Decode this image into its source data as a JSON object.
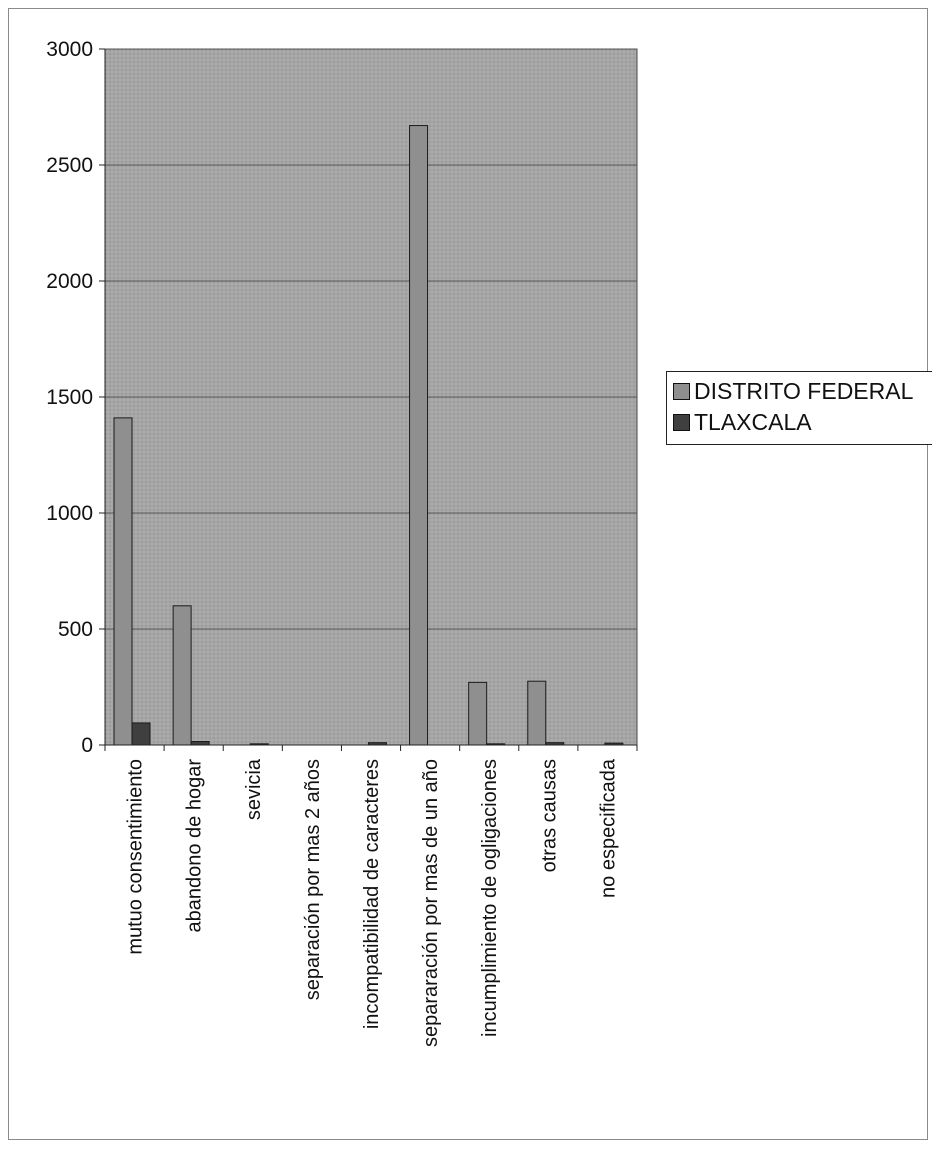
{
  "chart_data": {
    "type": "bar",
    "categories": [
      "mutuo consentimiento",
      "abandono de hogar",
      "sevicia",
      "separación por mas 2 años",
      "incompatibilidad de caracteres",
      "separaración por mas de un año",
      "incumplimiento de ogligaciones",
      "otras causas",
      "no especificada"
    ],
    "series": [
      {
        "name": "DISTRITO FEDERAL",
        "color": "#8f8f8f",
        "values": [
          1410,
          600,
          0,
          0,
          0,
          2670,
          270,
          275,
          0
        ]
      },
      {
        "name": "TLAXCALA",
        "color": "#3f3f3f",
        "values": [
          95,
          15,
          5,
          0,
          10,
          0,
          5,
          10,
          8
        ]
      }
    ],
    "ylim": [
      0,
      3000
    ],
    "yticks": [
      "0",
      "500",
      "1000",
      "1500",
      "2000",
      "2500",
      "3000"
    ],
    "grid": true,
    "legend": "right",
    "plot_background": "#a9a9a9",
    "gridline_color": "#555555"
  }
}
